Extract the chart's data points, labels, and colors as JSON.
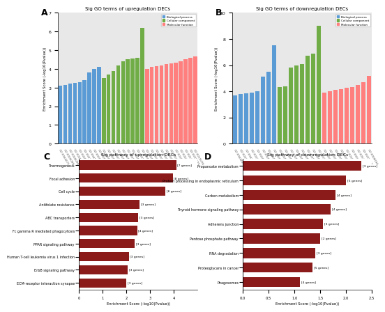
{
  "panel_A_title": "Sig GO terms of upregulation DECs",
  "panel_B_title": "Sig GO terms of downregulation DECs",
  "panel_C_title": "Sig pathway of upregulation DECs",
  "panel_D_title": "Sig pathway of downregulation DECs",
  "go_A_blue_values": [
    3.1,
    3.15,
    3.2,
    3.25,
    3.3,
    3.4,
    3.8,
    4.0,
    4.1
  ],
  "go_A_green_values": [
    3.5,
    3.7,
    3.9,
    4.2,
    4.4,
    4.5,
    4.55,
    4.6,
    6.2
  ],
  "go_A_red_values": [
    4.0,
    4.1,
    4.15,
    4.2,
    4.25,
    4.3,
    4.35,
    4.4,
    4.5,
    4.6,
    4.65
  ],
  "go_B_blue_values": [
    3.7,
    3.8,
    3.85,
    3.9,
    4.0,
    5.1,
    5.5,
    7.5
  ],
  "go_B_green_values": [
    4.3,
    4.4,
    5.8,
    6.0,
    6.1,
    6.7,
    6.9,
    9.0
  ],
  "go_B_red_values": [
    3.9,
    4.0,
    4.1,
    4.15,
    4.25,
    4.3,
    4.5,
    4.7,
    5.2
  ],
  "go_A_ylim": [
    0,
    7
  ],
  "go_B_ylim": [
    0,
    10
  ],
  "legend_labels": [
    "Biological process",
    "Cellular component",
    "Molecular function"
  ],
  "legend_colors": [
    "#5B9BD5",
    "#70AD47",
    "#FF7F7F"
  ],
  "go_A_blue_labels": [
    "GO:0044275",
    "GO:0006099",
    "GO:0006096",
    "GO:0006119",
    "GO:0006091",
    "GO:0022900",
    "GO:0045333",
    "GO:0008610",
    "GO:0006637"
  ],
  "go_A_green_labels": [
    "GO:0005743",
    "GO:0005761",
    "GO:0031090",
    "GO:0005777",
    "GO:0005739",
    "GO:0031966",
    "GO:0005765",
    "GO:0019866",
    "GO:0005740"
  ],
  "go_A_red_labels": [
    "GO:0005488",
    "GO:0003824",
    "GO:0016740",
    "GO:0016209",
    "GO:0016616",
    "GO:0004601",
    "GO:0016491",
    "GO:0004497",
    "GO:0052689",
    "GO:0019825",
    "GO:0015078"
  ],
  "go_B_blue_labels": [
    "GO:0044255",
    "GO:0019395",
    "GO:0044242",
    "GO:0019752",
    "GO:0006629",
    "GO:0006631",
    "GO:0001676",
    "GO:0006637"
  ],
  "go_B_green_labels": [
    "GO:0005759",
    "GO:0005743",
    "GO:0005739",
    "GO:0005737",
    "GO:0005777",
    "GO:0031966",
    "GO:0005765",
    "GO:0019866"
  ],
  "go_B_red_labels": [
    "GO:0003824",
    "GO:0016740",
    "GO:0016209",
    "GO:0016616",
    "GO:0016491",
    "GO:0004497",
    "GO:0052689",
    "GO:0019825",
    "GO:0008194"
  ],
  "pathway_C_labels": [
    "Thermogenesis",
    "Focal adhesion",
    "Cell cycle",
    "Antifolate resistance",
    "ABC transporters",
    "Fc gamma R mediated phagocytosis",
    "PPAR signaling pathway",
    "Human T-cell leukemia virus 1 infection",
    "ErbB signaling pathway",
    "ECM-receptor interaction synapse"
  ],
  "pathway_C_values": [
    4.1,
    3.95,
    3.65,
    2.55,
    2.5,
    2.45,
    2.35,
    2.1,
    2.05,
    2.0
  ],
  "pathway_C_gene_labels": [
    "[7 genes]",
    "[8 genes]",
    "[6 genes]",
    "[3 genes]",
    "[3 genes]",
    "[4 genes]",
    "[3 genes]",
    "[3 genes]",
    "[3 genes]",
    "[3 genes]"
  ],
  "pathway_C_color": "#8B1A1A",
  "pathway_C_xlim": [
    0,
    5
  ],
  "pathway_C_xticks": [
    0,
    1,
    2,
    3,
    4
  ],
  "pathway_D_labels": [
    "Propanoate metabolism",
    "Protein processing in endoplasmic reticulum",
    "Carbon metabolism",
    "Thyroid hormone signaling pathway",
    "Adherens junction",
    "Pentose phosphate pathway",
    "RNA degradation",
    "Proteoglycans in cancer",
    "Phagosomes"
  ],
  "pathway_D_values": [
    2.3,
    2.0,
    1.8,
    1.7,
    1.55,
    1.5,
    1.4,
    1.35,
    1.1
  ],
  "pathway_D_gene_labels": [
    "[3 genes]",
    "[5 genes]",
    "[4 genes]",
    "[4 genes]",
    "[3 genes]",
    "[2 genes]",
    "[3 genes]",
    "[5 genes]",
    "[4 genes]"
  ],
  "pathway_D_color": "#8B1A1A",
  "pathway_D_xlim": [
    0,
    2.5
  ],
  "pathway_D_xticks": [
    0.0,
    0.5,
    1.0,
    1.5,
    2.0,
    2.5
  ],
  "bg_color": "#E8E8E8",
  "blue_color": "#5B9BD5",
  "green_color": "#70AD47",
  "red_color": "#FF7F7F"
}
